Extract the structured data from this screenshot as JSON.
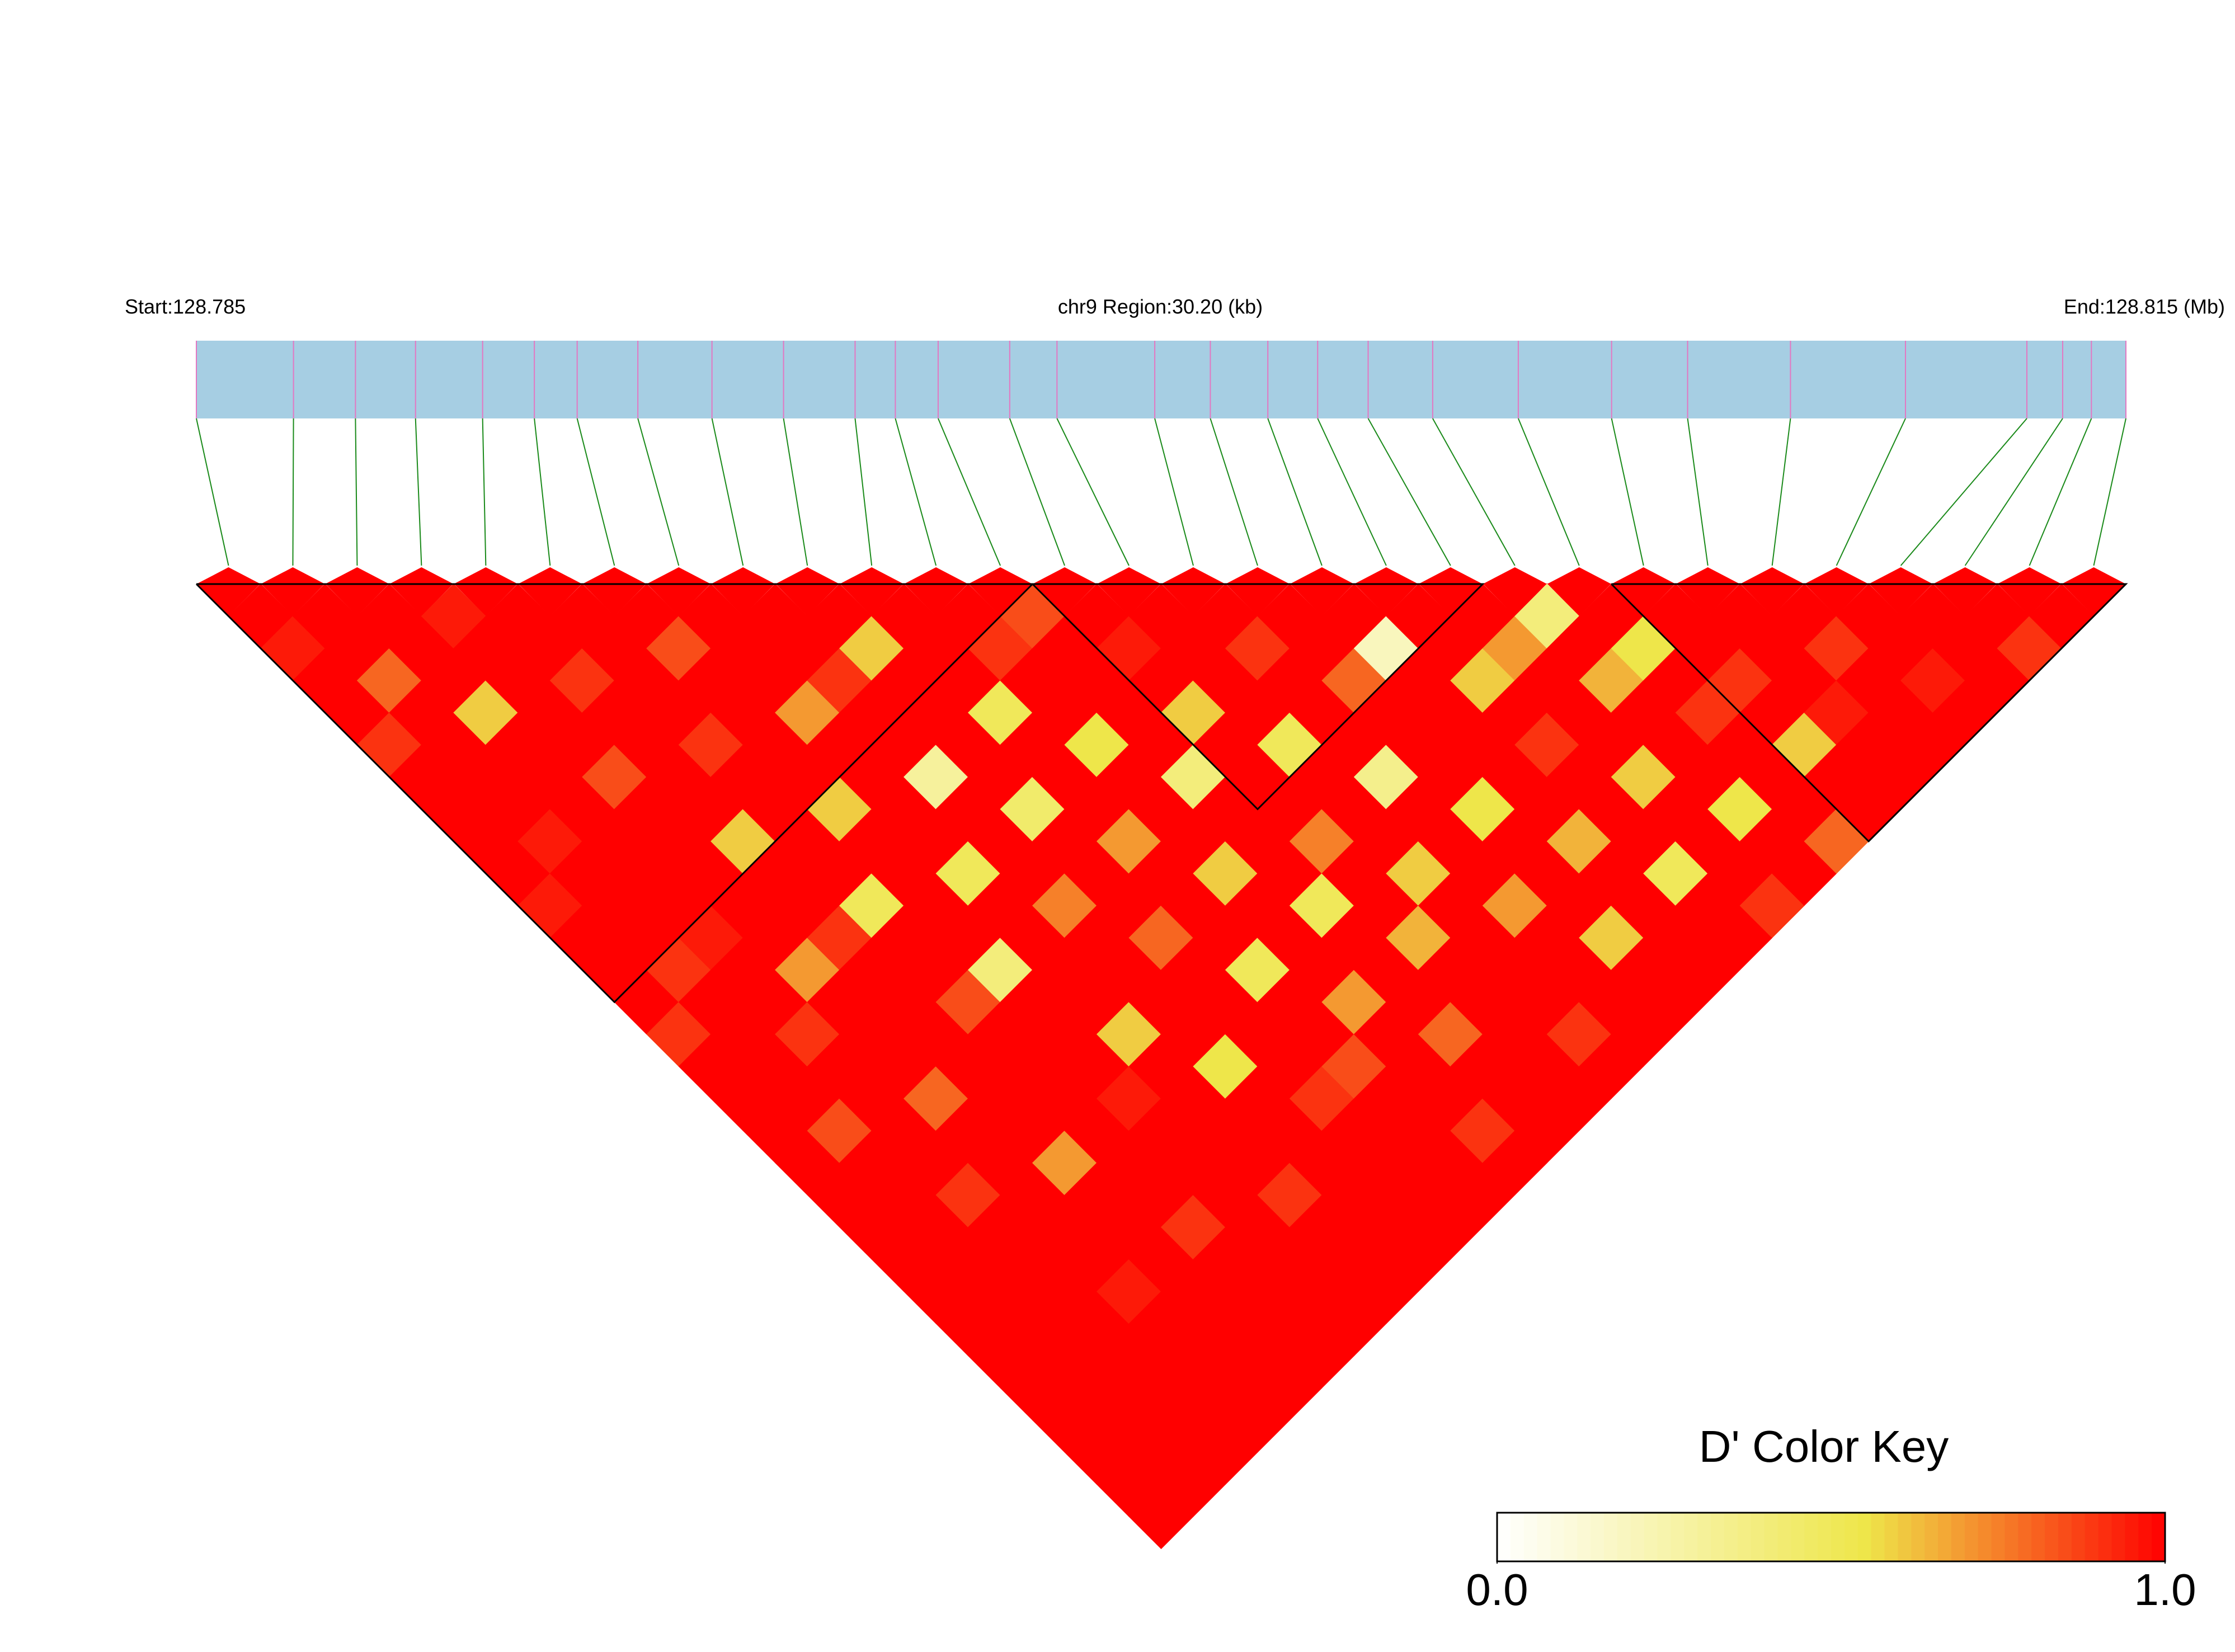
{
  "chart_data": {
    "type": "ld_heatmap",
    "start_label": "Start:128.785",
    "region_label": "chr9 Region:30.20 (kb)",
    "end_label": "End:128.815 (Mb)",
    "xlim": [
      128.785,
      128.8152
    ],
    "snp_positions": [
      128.785,
      128.78652,
      128.78749,
      128.78843,
      128.78948,
      128.79029,
      128.79096,
      128.79191,
      128.79307,
      128.79419,
      128.79531,
      128.79594,
      128.79661,
      128.79773,
      128.79847,
      128.8,
      128.80087,
      128.80177,
      128.80255,
      128.80334,
      128.80435,
      128.80569,
      128.80715,
      128.80834,
      128.80995,
      128.81175,
      128.81365,
      128.81421,
      128.81466,
      128.8152
    ],
    "ld_matrix": [
      [
        1,
        0.95,
        1,
        1,
        0.9,
        1,
        1,
        1,
        1,
        0.95,
        1,
        1,
        1,
        0.9,
        1,
        1,
        1,
        1,
        1,
        1,
        1,
        1,
        1,
        1,
        1,
        1,
        1,
        1,
        1
      ],
      [
        1,
        1,
        0.8,
        1,
        1,
        1,
        1,
        0.95,
        1,
        1,
        1,
        0.9,
        1,
        1,
        1,
        1,
        0.85,
        1,
        1,
        1,
        1,
        1,
        1,
        1,
        1,
        1,
        1,
        1
      ],
      [
        1,
        1,
        1,
        0.6,
        1,
        1,
        1,
        1,
        1,
        1,
        0.95,
        1,
        1,
        0.9,
        1,
        1,
        1,
        1,
        0.9,
        1,
        1,
        1,
        1,
        1,
        1,
        1,
        1
      ],
      [
        0.95,
        1,
        1,
        1,
        1,
        0.85,
        1,
        1,
        1,
        1,
        1,
        0.7,
        1,
        1,
        1,
        0.8,
        1,
        1,
        1,
        1,
        1,
        0.95,
        1,
        1,
        1,
        1
      ],
      [
        1,
        1,
        0.9,
        1,
        1,
        1,
        1,
        0.6,
        1,
        1,
        0.9,
        1,
        1,
        1,
        1,
        1,
        1,
        0.7,
        1,
        1,
        1,
        1,
        1,
        1,
        1
      ],
      [
        1,
        1,
        1,
        1,
        0.9,
        1,
        1,
        1,
        1,
        0.5,
        1,
        1,
        0.85,
        1,
        1,
        1,
        1,
        1,
        1,
        0.9,
        1,
        1,
        1,
        1
      ],
      [
        1,
        0.85,
        1,
        1,
        1,
        1,
        0.6,
        1,
        1,
        1,
        1,
        0.4,
        1,
        1,
        1,
        0.95,
        1,
        1,
        1,
        1,
        1,
        1,
        1
      ],
      [
        1,
        1,
        1,
        0.7,
        1,
        1,
        1,
        1,
        0.5,
        1,
        1,
        1,
        1,
        0.6,
        1,
        1,
        1,
        1,
        0.9,
        1,
        1,
        1
      ],
      [
        1,
        1,
        0.9,
        1,
        1,
        0.3,
        1,
        1,
        1,
        0.75,
        1,
        1,
        1,
        1,
        0.55,
        1,
        1,
        1,
        1,
        1,
        1
      ],
      [
        1,
        0.6,
        1,
        1,
        1,
        1,
        0.45,
        1,
        1,
        1,
        0.8,
        1,
        1,
        1,
        1,
        0.9,
        1,
        1,
        1,
        1
      ],
      [
        1,
        1,
        1,
        0.5,
        1,
        1,
        1,
        0.7,
        1,
        1,
        1,
        0.5,
        1,
        1,
        0.85,
        1,
        1,
        1,
        1
      ],
      [
        1,
        0.9,
        1,
        1,
        0.55,
        1,
        1,
        1,
        0.6,
        1,
        1,
        1,
        0.7,
        1,
        1,
        1,
        0.9,
        1
      ],
      [
        0.85,
        1,
        1,
        1,
        1,
        0.4,
        1,
        1,
        1,
        0.5,
        1,
        1,
        1,
        0.8,
        1,
        1,
        1
      ],
      [
        1,
        0.95,
        1,
        0.6,
        1,
        1,
        1,
        0.75,
        1,
        1,
        0.65,
        1,
        1,
        1,
        1,
        1
      ],
      [
        1,
        1,
        1,
        1,
        0.5,
        1,
        1,
        1,
        0.6,
        1,
        1,
        1,
        1,
        0.9,
        1
      ],
      [
        1,
        0.9,
        1,
        1,
        1,
        0.35,
        1,
        1,
        1,
        0.7,
        1,
        1,
        1,
        1
      ],
      [
        1,
        1,
        0.8,
        1,
        1,
        1,
        0.55,
        1,
        1,
        1,
        0.6,
        1,
        1
      ],
      [
        1,
        0.2,
        1,
        1,
        1,
        1,
        1,
        0.65,
        1,
        1,
        1,
        1
      ],
      [
        1,
        1,
        0.6,
        1,
        0.9,
        1,
        1,
        1,
        0.5,
        1,
        1
      ],
      [
        1,
        0.7,
        1,
        1,
        1,
        0.6,
        1,
        1,
        1,
        0.9
      ],
      [
        0.4,
        1,
        0.65,
        1,
        1,
        1,
        0.55,
        1,
        1
      ],
      [
        1,
        0.55,
        1,
        0.9,
        1,
        1,
        1,
        0.8
      ],
      [
        1,
        1,
        0.9,
        1,
        0.6,
        1,
        1
      ],
      [
        1,
        1,
        1,
        0.95,
        1,
        1
      ],
      [
        1,
        0.9,
        1,
        1,
        1
      ],
      [
        1,
        1,
        0.95,
        1
      ],
      [
        1,
        1,
        1
      ],
      [
        1,
        0.9
      ],
      [
        1
      ]
    ],
    "blocks": [
      [
        0,
        12
      ],
      [
        13,
        19
      ],
      [
        22,
        29
      ]
    ],
    "bar_color": "#a6cee3",
    "tick_color": "#e377c2",
    "link_color": "#1a8a1a",
    "block_outline_color": "#000000",
    "key_title": "D' Color Key",
    "clim": [
      0,
      1
    ],
    "cticks": [
      {
        "value": 0,
        "label": "0.0"
      },
      {
        "value": 1,
        "label": "1.0"
      }
    ],
    "color_stops": [
      {
        "value": 0,
        "color": "#ffffff"
      },
      {
        "value": 0.55,
        "color": "#eee64a"
      },
      {
        "value": 1,
        "color": "#ff0000"
      }
    ]
  }
}
